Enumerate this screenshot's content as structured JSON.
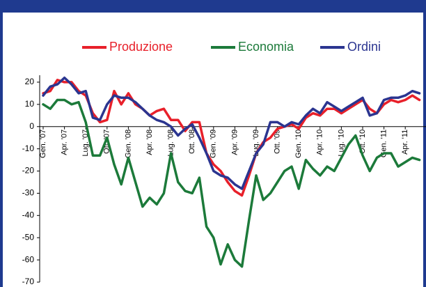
{
  "chart_data": {
    "type": "line",
    "categories": [
      "Gen. '07",
      null,
      null,
      "Apr. '07",
      null,
      null,
      "Lug. '07",
      null,
      null,
      "Ott. '07",
      null,
      null,
      "Gen. '08",
      null,
      null,
      "Apr. '08",
      null,
      null,
      "Lug. '08",
      null,
      null,
      "Ott. '08",
      null,
      null,
      "Gen. '09",
      null,
      null,
      "Apr. '09",
      null,
      null,
      "Lug. '09",
      null,
      null,
      "Ott. '09",
      null,
      null,
      "Gen. '10",
      null,
      null,
      "Apr. '10",
      null,
      null,
      "Lug. '10",
      null,
      null,
      "Ott. '10",
      null,
      null,
      "Gen. '11",
      null,
      null,
      "Apr. '11",
      null,
      null
    ],
    "series": [
      {
        "name": "Produzione",
        "color": "#e8202a",
        "values": [
          15,
          16,
          21,
          20,
          20,
          16,
          14,
          6,
          2,
          3,
          16,
          10,
          15,
          10,
          8,
          5,
          7,
          8,
          3,
          3,
          -2,
          2,
          2,
          -12,
          -17,
          -20,
          -25,
          -29,
          -31,
          -22,
          -12,
          -7,
          -5,
          -1,
          0,
          1,
          -1,
          4,
          6,
          5,
          8,
          8,
          6,
          8,
          10,
          12,
          8,
          6,
          10,
          12,
          11,
          12,
          14,
          12
        ]
      },
      {
        "name": "Economia",
        "color": "#1c7a3a",
        "values": [
          10,
          8,
          12,
          12,
          10,
          11,
          2,
          -13,
          -13,
          -5,
          -17,
          -26,
          -14,
          -25,
          -36,
          -32,
          -35,
          -30,
          -12,
          -25,
          -29,
          -30,
          -23,
          -45,
          -50,
          -62,
          -53,
          -60,
          -63,
          -42,
          -22,
          -33,
          -30,
          -25,
          -20,
          -18,
          -28,
          -15,
          -19,
          -22,
          -18,
          -20,
          -14,
          -8,
          -4,
          -13,
          -20,
          -14,
          -12,
          -12,
          -18,
          -16,
          -14,
          -15
        ]
      },
      {
        "name": "Ordini",
        "color": "#2b3590",
        "values": [
          14,
          18,
          19,
          22,
          19,
          15,
          16,
          4,
          3,
          10,
          14,
          13,
          13,
          11,
          8,
          5,
          3,
          2,
          0,
          -4,
          -1,
          1,
          -5,
          -12,
          -20,
          -22,
          -23,
          -26,
          -28,
          -20,
          -12,
          -8,
          2,
          2,
          0,
          2,
          1,
          5,
          8,
          6,
          11,
          9,
          7,
          9,
          11,
          13,
          5,
          6,
          12,
          13,
          13,
          14,
          16,
          15
        ]
      }
    ],
    "ylim": [
      -70,
      25
    ],
    "yticks": [
      -70,
      -60,
      -50,
      -40,
      -30,
      -20,
      -10,
      0,
      10,
      20
    ],
    "grid": false,
    "legend": "top"
  }
}
